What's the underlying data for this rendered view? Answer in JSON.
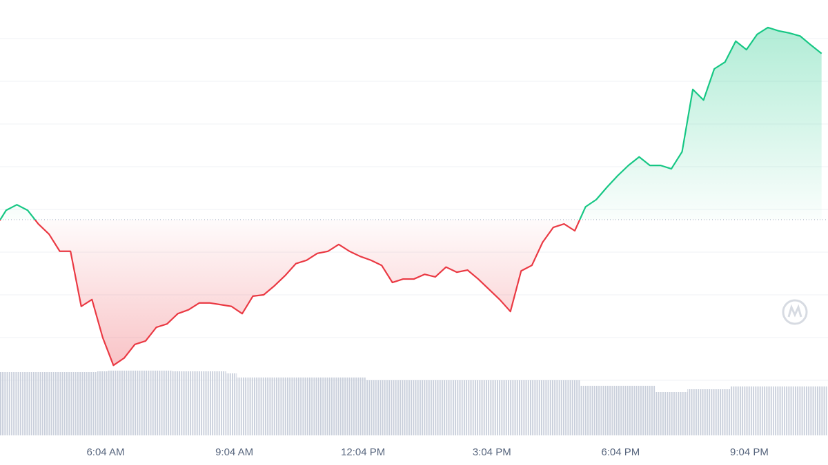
{
  "chart_data": {
    "type": "line",
    "x": [
      3.6,
      3.75,
      4,
      4.25,
      4.5,
      4.75,
      5,
      5.25,
      5.5,
      5.75,
      6,
      6.25,
      6.5,
      6.75,
      7,
      7.25,
      7.5,
      7.75,
      8,
      8.25,
      8.5,
      8.75,
      9,
      9.25,
      9.5,
      9.75,
      10,
      10.25,
      10.5,
      10.75,
      11,
      11.25,
      11.5,
      11.75,
      12,
      12.25,
      12.5,
      12.75,
      13,
      13.25,
      13.5,
      13.75,
      14,
      14.25,
      14.5,
      14.75,
      15,
      15.25,
      15.5,
      15.75,
      16,
      16.25,
      16.5,
      16.75,
      17,
      17.25,
      17.5,
      17.75,
      18,
      18.25,
      18.5,
      18.75,
      19,
      19.25,
      19.5,
      19.75,
      20,
      20.25,
      20.5,
      20.75,
      21,
      21.25,
      21.5,
      21.75,
      22,
      22.25,
      22.5,
      22.75
    ],
    "xlim": [
      3.607,
      22.9
    ],
    "xticks": [
      {
        "value": 6.0667,
        "label": "6:04 AM"
      },
      {
        "value": 9.0667,
        "label": "9:04 AM"
      },
      {
        "value": 12.0667,
        "label": "12:04 PM"
      },
      {
        "value": 15.0667,
        "label": "3:04 PM"
      },
      {
        "value": 18.0667,
        "label": "6:04 PM"
      },
      {
        "value": 21.0667,
        "label": "9:04 PM"
      }
    ],
    "ylim": [
      0,
      9.903
    ],
    "yticks": [
      1,
      2,
      3,
      4,
      5,
      6,
      7,
      8,
      9
    ],
    "y2lim": [
      0,
      100
    ],
    "grid": true,
    "baseline": 4.76,
    "series": [
      {
        "color_up": "#16c784",
        "color_down": "#ea3943",
        "values": [
          4.74,
          4.98,
          5.11,
          4.98,
          4.66,
          4.42,
          4.02,
          4.02,
          2.73,
          2.89,
          2.0,
          1.35,
          1.52,
          1.84,
          1.92,
          2.24,
          2.32,
          2.56,
          2.65,
          2.81,
          2.81,
          2.77,
          2.73,
          2.56,
          2.97,
          3.0,
          3.21,
          3.45,
          3.73,
          3.81,
          3.97,
          4.02,
          4.18,
          4.02,
          3.9,
          3.81,
          3.69,
          3.29,
          3.37,
          3.37,
          3.48,
          3.42,
          3.65,
          3.53,
          3.58,
          3.37,
          3.13,
          2.89,
          2.61,
          3.56,
          3.69,
          4.23,
          4.58,
          4.66,
          4.5,
          5.06,
          5.23,
          5.52,
          5.79,
          6.03,
          6.23,
          6.03,
          6.03,
          5.95,
          6.35,
          7.81,
          7.56,
          8.29,
          8.45,
          8.94,
          8.74,
          9.1,
          9.26,
          9.18,
          9.13,
          9.06,
          8.85,
          8.65
        ]
      },
      {
        "type": "bar",
        "axis": "y2",
        "color": "#c9cfdb",
        "values": [
          92,
          92,
          92,
          92,
          92,
          92,
          92,
          92,
          92,
          92,
          93,
          94,
          94,
          94,
          94,
          94,
          94,
          93,
          93,
          93,
          93,
          93,
          90,
          84,
          84,
          84,
          84,
          84,
          84,
          84,
          84,
          84,
          84,
          84,
          84,
          80,
          80,
          80,
          80,
          80,
          80,
          80,
          80,
          80,
          80,
          80,
          80,
          80,
          80,
          80,
          80,
          80,
          80,
          80,
          80,
          72,
          72,
          72,
          72,
          72,
          72,
          72,
          63,
          63,
          63,
          67,
          67,
          67,
          67,
          71,
          71,
          71,
          71,
          71,
          71,
          71,
          71,
          71
        ]
      }
    ]
  }
}
